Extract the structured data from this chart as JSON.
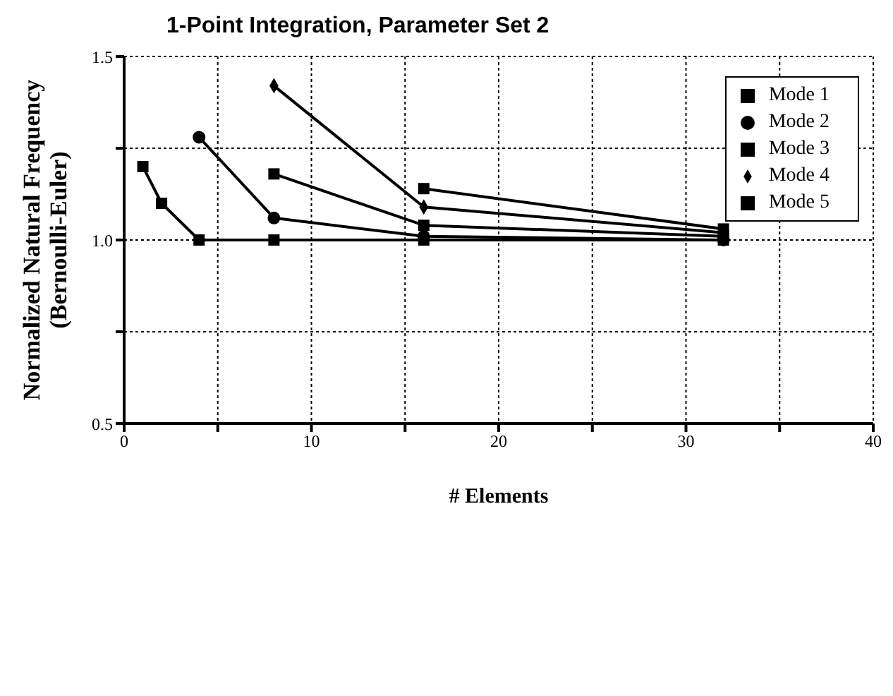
{
  "chart_data": {
    "type": "line",
    "title": "1-Point Integration, Parameter Set 2",
    "xlabel": "# Elements",
    "ylabel": "Normalized Natural Frequency\n(Bernoulli-Euler)",
    "x": [
      1,
      2,
      4,
      8,
      16,
      32
    ],
    "series": [
      {
        "name": "Mode 1",
        "color": "#000000",
        "marker": "square",
        "values": [
          1.2,
          1.1,
          1.0,
          1.0,
          1.0,
          1.0
        ]
      },
      {
        "name": "Mode 2",
        "color": "#000000",
        "marker": "circle",
        "values": [
          null,
          null,
          1.28,
          1.06,
          1.01,
          1.0
        ]
      },
      {
        "name": "Mode 3",
        "color": "#000000",
        "marker": "square",
        "values": [
          null,
          null,
          null,
          1.18,
          1.04,
          1.01
        ]
      },
      {
        "name": "Mode 4",
        "color": "#000000",
        "marker": "diamond",
        "values": [
          null,
          null,
          null,
          1.42,
          1.09,
          1.02
        ]
      },
      {
        "name": "Mode 5",
        "color": "#000000",
        "marker": "square",
        "values": [
          null,
          null,
          null,
          null,
          1.14,
          1.03
        ]
      }
    ],
    "xlim": [
      0,
      40
    ],
    "xticks": [
      0,
      {
        "value": 5,
        "label": null
      },
      10,
      {
        "value": 15,
        "label": null
      },
      20,
      {
        "value": 25,
        "label": null
      },
      30,
      {
        "value": 35,
        "label": null
      },
      40
    ],
    "ylim": [
      0.5,
      1.5
    ],
    "yticks": [
      0.5,
      {
        "value": 0.75,
        "label": null
      },
      {
        "value": 1.0,
        "label": "1.0"
      },
      {
        "value": 1.25,
        "label": null
      },
      1.5
    ],
    "grid": true,
    "legend": "top right",
    "line_style": "solid"
  }
}
